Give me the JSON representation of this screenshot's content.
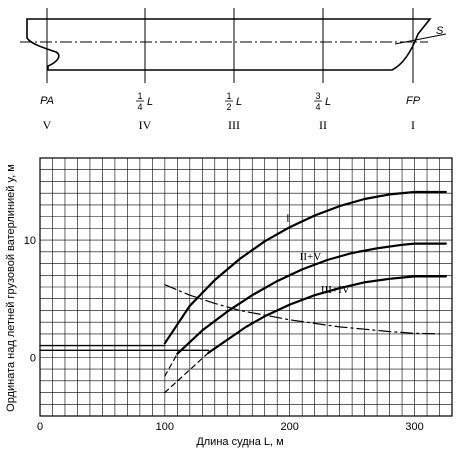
{
  "ship": {
    "label_s": "S",
    "stations": [
      {
        "pos": "PA",
        "roman": "V"
      },
      {
        "pos": "1/4 L",
        "roman": "IV"
      },
      {
        "pos": "1/2 L",
        "roman": "III"
      },
      {
        "pos": "3/4 L",
        "roman": "II"
      },
      {
        "pos": "FP",
        "roman": "I"
      }
    ],
    "frac_num": "1",
    "frac_den_14": "4",
    "frac_den_12": "2",
    "frac_num_34": "3",
    "frac_den_34": "4",
    "frac_L": "L"
  },
  "chart_data": {
    "type": "line",
    "xlabel": "Длина судна L, м",
    "ylabel": "Ордината над летней грузовой ватерлинией y, м",
    "xlim": [
      0,
      330
    ],
    "ylim": [
      -5,
      17
    ],
    "xticks": [
      0,
      100,
      200,
      300
    ],
    "yticks": [
      0,
      10
    ],
    "xtick_labels": [
      "0",
      "100",
      "200",
      "300"
    ],
    "ytick_labels": [
      "0",
      "10"
    ],
    "grid": true,
    "series": [
      {
        "name": "I",
        "style": "solid",
        "points": [
          [
            100,
            1.2
          ],
          [
            120,
            4.4
          ],
          [
            140,
            6.6
          ],
          [
            160,
            8.4
          ],
          [
            180,
            9.9
          ],
          [
            200,
            11.1
          ],
          [
            220,
            12.1
          ],
          [
            240,
            12.9
          ],
          [
            260,
            13.5
          ],
          [
            280,
            13.9
          ],
          [
            300,
            14.1
          ],
          [
            325,
            14.1
          ]
        ]
      },
      {
        "name": "II+V",
        "style": "solid",
        "points": [
          [
            110,
            0.3
          ],
          [
            130,
            2.3
          ],
          [
            150,
            3.9
          ],
          [
            170,
            5.3
          ],
          [
            190,
            6.5
          ],
          [
            210,
            7.5
          ],
          [
            230,
            8.3
          ],
          [
            250,
            8.9
          ],
          [
            270,
            9.3
          ],
          [
            290,
            9.6
          ],
          [
            300,
            9.7
          ],
          [
            325,
            9.7
          ]
        ]
      },
      {
        "name": "III+IV",
        "style": "solid",
        "points": [
          [
            135,
            0.4
          ],
          [
            150,
            1.5
          ],
          [
            165,
            2.6
          ],
          [
            180,
            3.5
          ],
          [
            200,
            4.5
          ],
          [
            220,
            5.3
          ],
          [
            240,
            5.9
          ],
          [
            260,
            6.4
          ],
          [
            280,
            6.7
          ],
          [
            300,
            6.9
          ],
          [
            325,
            6.9
          ]
        ]
      },
      {
        "name": "",
        "style": "dashed",
        "points": [
          [
            100,
            -1.6
          ],
          [
            110,
            0.3
          ]
        ]
      },
      {
        "name": "",
        "style": "dashed",
        "points": [
          [
            100,
            -3.0
          ],
          [
            135,
            0.4
          ]
        ]
      },
      {
        "name": "",
        "style": "dashdot",
        "points": [
          [
            100,
            6.2
          ],
          [
            120,
            5.3
          ],
          [
            140,
            4.6
          ],
          [
            160,
            4.0
          ],
          [
            180,
            3.6
          ],
          [
            200,
            3.2
          ],
          [
            220,
            2.9
          ],
          [
            240,
            2.6
          ],
          [
            260,
            2.4
          ],
          [
            280,
            2.2
          ],
          [
            300,
            2.05
          ],
          [
            320,
            2.0
          ]
        ]
      },
      {
        "name": "",
        "style": "solid",
        "points": [
          [
            0,
            0.6
          ],
          [
            100,
            0.6
          ]
        ]
      },
      {
        "name": "",
        "style": "solid",
        "points": [
          [
            0,
            1.0
          ],
          [
            100,
            1.0
          ]
        ]
      },
      {
        "name": "",
        "style": "solid",
        "points": [
          [
            100,
            0.6
          ],
          [
            135,
            0.6
          ]
        ]
      }
    ],
    "curve_labels": [
      {
        "text": "I",
        "x": 197,
        "y": 11.6
      },
      {
        "text": "II+V",
        "x": 208,
        "y": 8.3
      },
      {
        "text": "III+IV",
        "x": 225,
        "y": 5.5
      }
    ]
  }
}
